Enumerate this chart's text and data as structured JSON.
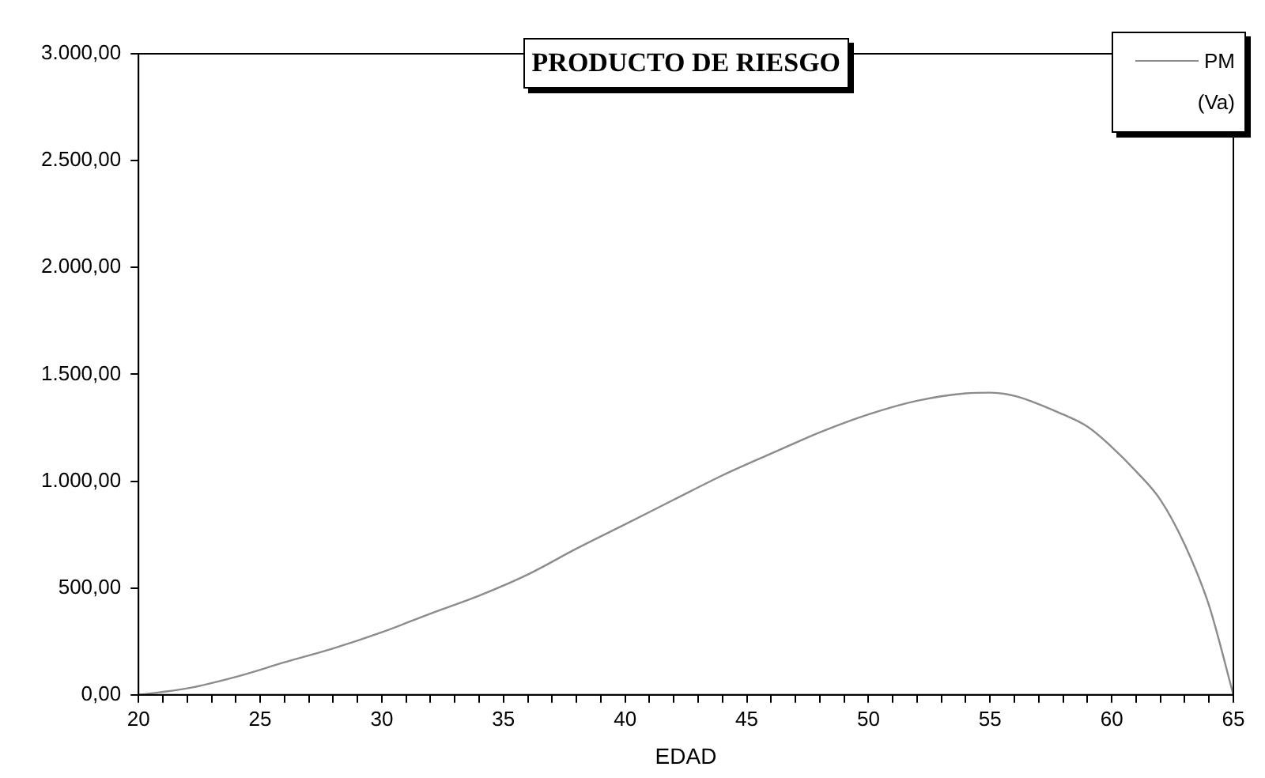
{
  "chart_data": {
    "type": "line",
    "title": "PRODUCTO DE RIESGO",
    "xlabel": "EDAD",
    "legend": "top right",
    "annotations": [
      "(Va)"
    ],
    "xlim": [
      20,
      65
    ],
    "xticks": [
      20,
      {
        "value": 21,
        "label": null
      },
      {
        "value": 22,
        "label": null
      },
      {
        "value": 23,
        "label": null
      },
      {
        "value": 24,
        "label": null
      },
      25,
      {
        "value": 26,
        "label": null
      },
      {
        "value": 27,
        "label": null
      },
      {
        "value": 28,
        "label": null
      },
      {
        "value": 29,
        "label": null
      },
      30,
      {
        "value": 31,
        "label": null
      },
      {
        "value": 32,
        "label": null
      },
      {
        "value": 33,
        "label": null
      },
      {
        "value": 34,
        "label": null
      },
      35,
      {
        "value": 36,
        "label": null
      },
      {
        "value": 37,
        "label": null
      },
      {
        "value": 38,
        "label": null
      },
      {
        "value": 39,
        "label": null
      },
      40,
      {
        "value": 41,
        "label": null
      },
      {
        "value": 42,
        "label": null
      },
      {
        "value": 43,
        "label": null
      },
      {
        "value": 44,
        "label": null
      },
      45,
      {
        "value": 46,
        "label": null
      },
      {
        "value": 47,
        "label": null
      },
      {
        "value": 48,
        "label": null
      },
      {
        "value": 49,
        "label": null
      },
      50,
      {
        "value": 51,
        "label": null
      },
      {
        "value": 52,
        "label": null
      },
      {
        "value": 53,
        "label": null
      },
      {
        "value": 54,
        "label": null
      },
      55,
      {
        "value": 56,
        "label": null
      },
      {
        "value": 57,
        "label": null
      },
      {
        "value": 58,
        "label": null
      },
      {
        "value": 59,
        "label": null
      },
      60,
      {
        "value": 61,
        "label": null
      },
      {
        "value": 62,
        "label": null
      },
      {
        "value": 63,
        "label": null
      },
      {
        "value": 64,
        "label": null
      },
      65
    ],
    "ylim": [
      0,
      3000
    ],
    "yticks": [
      {
        "value": 0,
        "label": "0,00"
      },
      {
        "value": 500,
        "label": "500,00"
      },
      {
        "value": 1000,
        "label": "1.000,00"
      },
      {
        "value": 1500,
        "label": "1.500,00"
      },
      {
        "value": 2000,
        "label": "2.000,00"
      },
      {
        "value": 2500,
        "label": "2.500,00"
      },
      {
        "value": 3000,
        "label": "3.000,00"
      }
    ],
    "grid": false,
    "marker": "none",
    "line_style": "solid",
    "x": [
      20,
      22,
      24,
      26,
      28,
      30,
      32,
      34,
      36,
      38,
      40,
      42,
      44,
      46,
      48,
      50,
      52,
      54,
      55,
      56,
      58,
      59,
      60,
      61,
      62,
      63,
      64,
      65
    ],
    "series": [
      {
        "name": "PM",
        "color": "#8c8c8c",
        "values": [
          0,
          30,
          84,
          152,
          217,
          293,
          380,
          464,
          563,
          684,
          798,
          913,
          1027,
          1129,
          1228,
          1312,
          1376,
          1411,
          1414,
          1399,
          1312,
          1255,
          1160,
          1046,
          913,
          703,
          418,
          0
        ]
      }
    ]
  }
}
